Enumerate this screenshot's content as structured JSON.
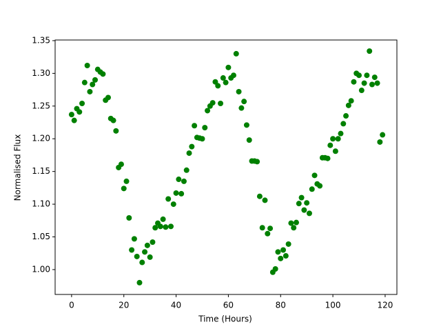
{
  "chart_data": {
    "type": "scatter",
    "xlabel": "Time (Hours)",
    "ylabel": "Normalised Flux",
    "series": [
      {
        "color": "#008000",
        "x": [
          0,
          1,
          2,
          3,
          4,
          5,
          6,
          7,
          8,
          9,
          10,
          11,
          12,
          13,
          14,
          15,
          16,
          17,
          18,
          19,
          20,
          21,
          22,
          23,
          24,
          25,
          26,
          27,
          28,
          29,
          30,
          31,
          32,
          33,
          34,
          35,
          36,
          37,
          38,
          39,
          40,
          41,
          42,
          43,
          44,
          45,
          46,
          47,
          48,
          49,
          50,
          51,
          52,
          53,
          54,
          55,
          56,
          57,
          58,
          59,
          60,
          61,
          62,
          63,
          64,
          65,
          66,
          67,
          68,
          69,
          70,
          71,
          72,
          73,
          74,
          75,
          76,
          77,
          78,
          79,
          80,
          81,
          82,
          83,
          84,
          85,
          86,
          87,
          88,
          89,
          90,
          91,
          92,
          93,
          94,
          95,
          96,
          97,
          98,
          99,
          100,
          101,
          102,
          103,
          104,
          105,
          106,
          107,
          108,
          109,
          110,
          111,
          112,
          113,
          114,
          115,
          116,
          117,
          118,
          119
        ],
        "values": [
          1.237,
          1.228,
          1.246,
          1.241,
          1.254,
          1.286,
          1.312,
          1.272,
          1.283,
          1.29,
          1.306,
          1.302,
          1.299,
          1.259,
          1.263,
          1.231,
          1.228,
          1.212,
          1.156,
          1.161,
          1.124,
          1.135,
          1.079,
          1.03,
          1.047,
          1.02,
          0.98,
          1.011,
          1.027,
          1.037,
          1.019,
          1.042,
          1.064,
          1.071,
          1.066,
          1.077,
          1.065,
          1.108,
          1.066,
          1.1,
          1.117,
          1.138,
          1.116,
          1.135,
          1.152,
          1.178,
          1.188,
          1.22,
          1.202,
          1.201,
          1.2,
          1.217,
          1.243,
          1.25,
          1.255,
          1.287,
          1.281,
          1.254,
          1.293,
          1.286,
          1.309,
          1.293,
          1.297,
          1.33,
          1.272,
          1.247,
          1.257,
          1.221,
          1.198,
          1.166,
          1.166,
          1.165,
          1.112,
          1.064,
          1.106,
          1.055,
          1.063,
          0.996,
          1.001,
          1.027,
          1.017,
          1.03,
          1.021,
          1.039,
          1.071,
          1.064,
          1.072,
          1.101,
          1.11,
          1.091,
          1.102,
          1.086,
          1.123,
          1.144,
          1.131,
          1.128,
          1.171,
          1.171,
          1.17,
          1.19,
          1.2,
          1.181,
          1.2,
          1.208,
          1.223,
          1.235,
          1.251,
          1.258,
          1.287,
          1.3,
          1.297,
          1.274,
          1.285,
          1.297,
          1.334,
          1.283,
          1.294,
          1.285,
          1.195,
          1.206
        ]
      }
    ],
    "xlim": [
      -6.3,
      124.5
    ],
    "xticks": [
      0,
      20,
      40,
      60,
      80,
      100,
      120
    ],
    "ylim": [
      0.962,
      1.351
    ],
    "yticks": [
      {
        "value": 1,
        "label": "1.00"
      },
      {
        "value": 1.05,
        "label": "1.05"
      },
      {
        "value": 1.1,
        "label": "1.10"
      },
      {
        "value": 1.15,
        "label": "1.15"
      },
      {
        "value": 1.2,
        "label": "1.20"
      },
      {
        "value": 1.25,
        "label": "1.25"
      },
      {
        "value": 1.3,
        "label": "1.30"
      },
      {
        "value": 1.35,
        "label": "1.35"
      }
    ]
  }
}
